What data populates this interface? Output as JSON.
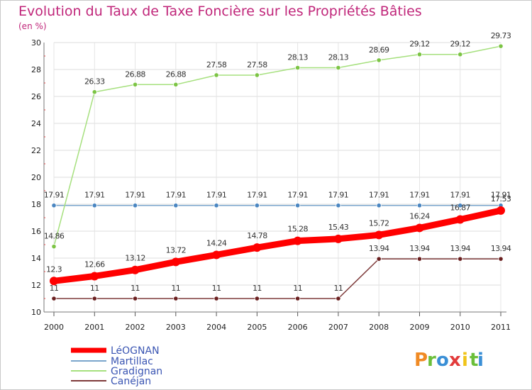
{
  "chart_data": {
    "type": "line",
    "title": "Evolution du Taux de Taxe Foncière sur les Propriétés Bâties",
    "subtitle": "(en %)",
    "categories": [
      "2000",
      "2001",
      "2002",
      "2003",
      "2004",
      "2005",
      "2006",
      "2007",
      "2008",
      "2009",
      "2010",
      "2011"
    ],
    "ylim": [
      10,
      30
    ],
    "yticks": [
      10,
      12,
      14,
      16,
      18,
      20,
      22,
      24,
      26,
      28,
      30
    ],
    "series": [
      {
        "name": "Martillac",
        "color": "#7aa6cc",
        "markerColor": "#4a86c1",
        "values": [
          17.91,
          17.91,
          17.91,
          17.91,
          17.91,
          17.91,
          17.91,
          17.91,
          17.91,
          17.91,
          17.91,
          17.91
        ],
        "labels": [
          "17.91",
          "17.91",
          "17.91",
          "17.91",
          "17.91",
          "17.91",
          "17.91",
          "17.91",
          "17.91",
          "17.91",
          "17.91",
          "17.91"
        ]
      },
      {
        "name": "Gradignan",
        "color": "#a6e07e",
        "markerColor": "#7cc444",
        "values": [
          14.86,
          26.33,
          26.88,
          26.88,
          27.58,
          27.58,
          28.13,
          28.13,
          28.69,
          29.12,
          29.12,
          29.73
        ],
        "labels": [
          "14.86",
          "26.33",
          "26.88",
          "26.88",
          "27.58",
          "27.58",
          "28.13",
          "28.13",
          "28.69",
          "29.12",
          "29.12",
          "29.73"
        ]
      },
      {
        "name": "Canéjan",
        "color": "#7e3a3a",
        "markerColor": "#6a1f1f",
        "values": [
          11,
          11,
          11,
          11,
          11,
          11,
          11,
          11,
          13.94,
          13.94,
          13.94,
          13.94
        ],
        "labels": [
          "11",
          "11",
          "11",
          "11",
          "11",
          "11",
          "11",
          "11",
          "13.94",
          "13.94",
          "13.94",
          "13.94"
        ]
      },
      {
        "name": "LéOGNAN",
        "color": "#ff0000",
        "markerColor": "#ff0000",
        "values": [
          12.3,
          12.66,
          13.12,
          13.72,
          14.24,
          14.78,
          15.28,
          15.43,
          15.72,
          16.24,
          16.87,
          17.53
        ],
        "labels": [
          "12.3",
          "12.66",
          "13.12",
          "13.72",
          "14.24",
          "14.78",
          "15.28",
          "15.43",
          "15.72",
          "16.24",
          "16.87",
          "17.53"
        ]
      }
    ],
    "legend": [
      "LéOGNAN",
      "Martillac",
      "Gradignan",
      "Canéjan"
    ]
  },
  "branding": {
    "logo_letters": [
      "P",
      "r",
      "o",
      "x",
      "i",
      "t",
      "i"
    ],
    "logo_colors": [
      "#f08a24",
      "#6bbf3a",
      "#3a8fd6",
      "#e23b3b",
      "#f0c419",
      "#6bbf3a",
      "#3a8fd6"
    ]
  }
}
